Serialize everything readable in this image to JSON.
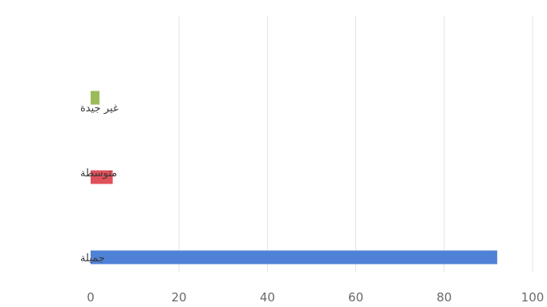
{
  "chart_data": {
    "type": "bar",
    "orientation": "horizontal",
    "categories": [
      "غير جيدة",
      "متوسطة",
      "جميلة"
    ],
    "values": [
      2,
      5,
      92
    ],
    "colors": [
      "#9bbb59",
      "#e0505a",
      "#4f81d6"
    ],
    "xlim": [
      0,
      100
    ],
    "xticks": [
      0,
      20,
      40,
      60,
      80,
      100
    ],
    "xtick_labels": [
      "0",
      "20",
      "40",
      "60",
      "80",
      "100"
    ],
    "grid": true,
    "legend": "none",
    "title": "",
    "xlabel": "",
    "ylabel": ""
  }
}
